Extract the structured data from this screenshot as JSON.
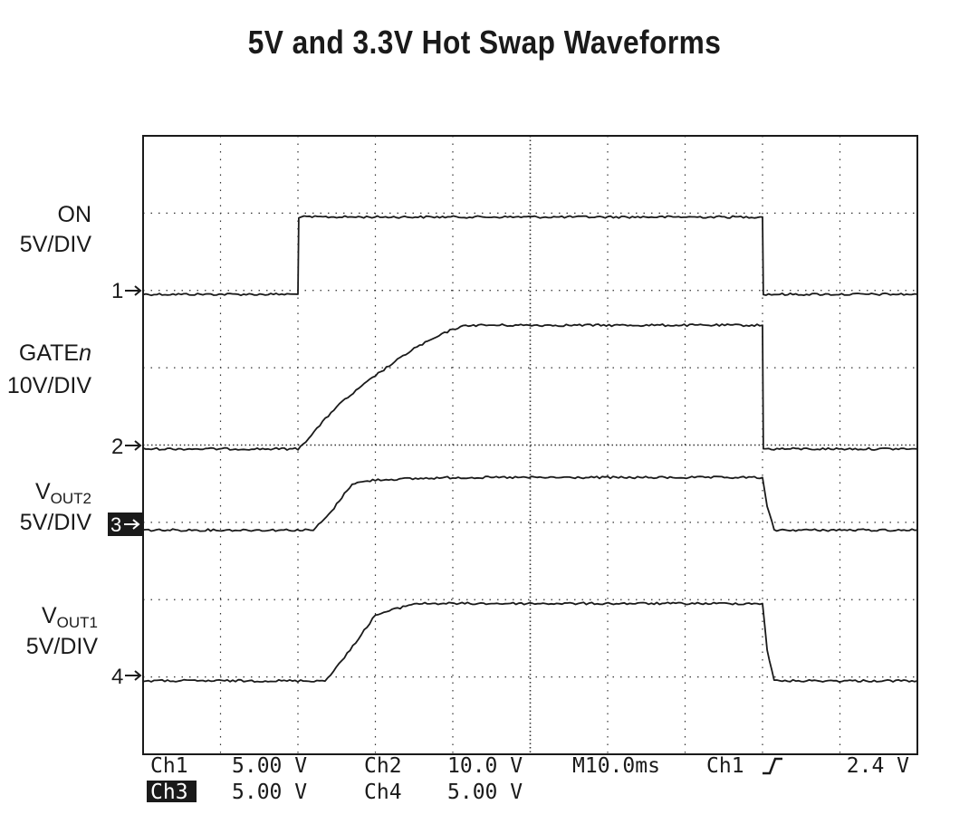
{
  "title": "5V and 3.3V Hot Swap Waveforms",
  "channel_labels": [
    {
      "name": "ON",
      "scale": "5V/DIV"
    },
    {
      "name": "GATE",
      "name_suffix": "n",
      "scale": "10V/DIV"
    },
    {
      "name": "V",
      "sub": "OUT2",
      "scale": "5V/DIV"
    },
    {
      "name": "V",
      "sub": "OUT1",
      "scale": "5V/DIV"
    }
  ],
  "markers": [
    "1",
    "2",
    "3",
    "4"
  ],
  "readout": {
    "ch1": "Ch1",
    "ch1_scale": "5.00 V",
    "ch2": "Ch2",
    "ch2_scale": "10.0 V",
    "timebase": "M10.0ms",
    "trigger_source": "Ch1",
    "trigger_slope_icon": "rising-edge-icon",
    "trigger_level": "2.4 V",
    "ch3": "Ch3",
    "ch3_scale": "5.00 V",
    "ch4": "Ch4",
    "ch4_scale": "5.00 V"
  },
  "chart_data": {
    "type": "line",
    "title": "5V and 3.3V Hot Swap Waveforms",
    "xlabel": "",
    "ylabel": "",
    "x_unit": "ms",
    "grid": true,
    "xlim": [
      0,
      100
    ],
    "ylim": [
      0,
      8
    ],
    "series": [
      {
        "name": "ON",
        "scale": "5V/DIV",
        "ground_div": 5.95,
        "x": [
          0,
          20,
          20.1,
          80,
          80.1,
          100
        ],
        "y": [
          0,
          0,
          1.0,
          1.0,
          0,
          0
        ]
      },
      {
        "name": "GATEn",
        "scale": "10V/DIV",
        "ground_div": 3.95,
        "x": [
          0,
          20,
          21,
          25,
          30,
          35,
          40,
          42,
          45,
          55,
          65,
          80,
          80.1,
          100
        ],
        "y": [
          0,
          0,
          0.1,
          0.55,
          0.95,
          1.3,
          1.55,
          1.6,
          1.6,
          1.6,
          1.6,
          1.6,
          0,
          0
        ]
      },
      {
        "name": "VOUT2",
        "scale": "5V/DIV",
        "ground_div": 2.9,
        "x": [
          0,
          22,
          24,
          27,
          30,
          40,
          80,
          80.6,
          81.5,
          100
        ],
        "y": [
          0,
          0,
          0.2,
          0.6,
          0.65,
          0.68,
          0.68,
          0.3,
          0,
          0
        ]
      },
      {
        "name": "VOUT1",
        "scale": "5V/DIV",
        "ground_div": 0.95,
        "x": [
          0,
          23.5,
          26,
          30,
          35,
          45,
          80,
          80.6,
          81.5,
          100
        ],
        "y": [
          0,
          0,
          0.3,
          0.85,
          1.0,
          1.0,
          1.0,
          0.4,
          0,
          0
        ]
      }
    ]
  }
}
